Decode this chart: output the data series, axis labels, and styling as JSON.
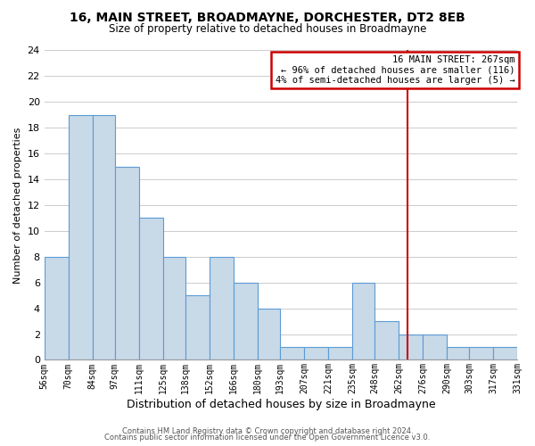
{
  "title": "16, MAIN STREET, BROADMAYNE, DORCHESTER, DT2 8EB",
  "subtitle": "Size of property relative to detached houses in Broadmayne",
  "xlabel": "Distribution of detached houses by size in Broadmayne",
  "ylabel": "Number of detached properties",
  "bar_edges": [
    56,
    70,
    84,
    97,
    111,
    125,
    138,
    152,
    166,
    180,
    193,
    207,
    221,
    235,
    248,
    262,
    276,
    290,
    303,
    317,
    331
  ],
  "bar_heights": [
    8,
    19,
    19,
    15,
    11,
    8,
    5,
    8,
    6,
    4,
    1,
    1,
    1,
    6,
    3,
    2,
    2,
    1,
    1,
    1
  ],
  "bar_color": "#c8d9e8",
  "bar_edgecolor": "#5b9bd5",
  "property_value": 267,
  "annotation_title": "16 MAIN STREET: 267sqm",
  "annotation_line1": "← 96% of detached houses are smaller (116)",
  "annotation_line2": "4% of semi-detached houses are larger (5) →",
  "vline_color": "#cc0000",
  "annotation_box_edgecolor": "#cc0000",
  "ylim": [
    0,
    24
  ],
  "yticks": [
    0,
    2,
    4,
    6,
    8,
    10,
    12,
    14,
    16,
    18,
    20,
    22,
    24
  ],
  "footer1": "Contains HM Land Registry data © Crown copyright and database right 2024.",
  "footer2": "Contains public sector information licensed under the Open Government Licence v3.0.",
  "background_color": "#ffffff",
  "grid_color": "#cccccc"
}
